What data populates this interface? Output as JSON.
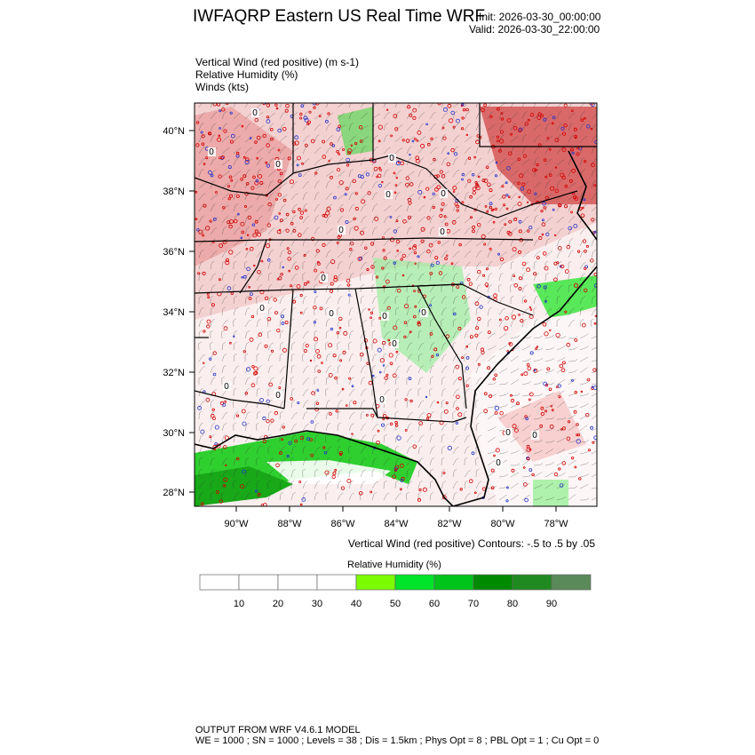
{
  "header": {
    "title": "IWFAQRP Eastern US Real Time WRF",
    "init": "Init: 2026-03-30_00:00:00",
    "valid": "Valid: 2026-03-30_22:00:00"
  },
  "fields": [
    "Vertical Wind (red positive)   (m s-1)",
    "Relative Humidity   (%)",
    "Winds   (kts)"
  ],
  "map": {
    "lat_ticks": [
      "40°N",
      "38°N",
      "36°N",
      "34°N",
      "32°N",
      "30°N",
      "28°N"
    ],
    "lon_ticks": [
      "90°W",
      "88°W",
      "86°W",
      "84°W",
      "82°W",
      "80°W",
      "78°W"
    ],
    "contour_labels": [
      "0",
      "0",
      "0",
      "0",
      "0",
      "0",
      "0",
      "0",
      "0",
      "0",
      "0",
      "0",
      "0",
      "0",
      "0",
      "0",
      "0",
      "0",
      "0",
      "0"
    ],
    "colors": {
      "positive_vertical_wind": "#d40000",
      "negative_vertical_wind": "#2233cc",
      "borders": "#000000"
    }
  },
  "contour_info": "Vertical Wind (red positive) Contours: -.5 to .5 by .05",
  "legend": {
    "title": "Relative Humidity  (%)",
    "labels": [
      "10",
      "20",
      "30",
      "40",
      "50",
      "60",
      "70",
      "80",
      "90"
    ],
    "colors": [
      "#ffffff",
      "#ffffff",
      "#ffffff",
      "#ffffff",
      "#7cfc00",
      "#00e42a",
      "#00c41a",
      "#008a00",
      "#1f8a1f",
      "#5a8a5a"
    ]
  },
  "footer": {
    "line1": "OUTPUT FROM WRF V4.6.1 MODEL",
    "line2": "WE = 1000 ; SN = 1000 ; Levels = 38 ; Dis = 1.5km ; Phys Opt = 8 ; PBL Opt = 1 ; Cu Opt = 0"
  }
}
